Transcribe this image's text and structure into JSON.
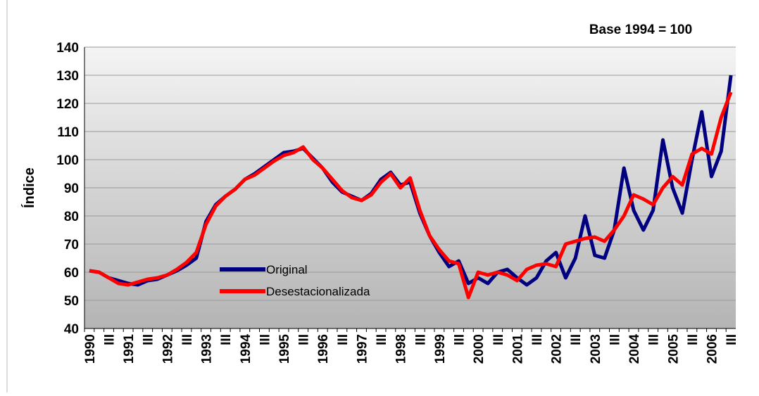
{
  "chart_data": {
    "type": "line",
    "annotation": "Base 1994 = 100",
    "y_label": "Índice",
    "categories": [
      "1990",
      null,
      "III",
      null,
      "1991",
      null,
      "III",
      null,
      "1992",
      null,
      "III",
      null,
      "1993",
      null,
      "III",
      null,
      "1994",
      null,
      "III",
      null,
      "1995",
      null,
      "III",
      null,
      "1996",
      null,
      "III",
      null,
      "1997",
      null,
      "III",
      null,
      "1998",
      null,
      "III",
      null,
      "1999",
      null,
      "III",
      null,
      "2000",
      null,
      "III",
      null,
      "2001",
      null,
      "III",
      null,
      "2002",
      null,
      "III",
      null,
      "2003",
      null,
      "III",
      null,
      "2004",
      null,
      "III",
      null,
      "2005",
      null,
      "III",
      null,
      "2006",
      null,
      "III"
    ],
    "series": [
      {
        "name": "Original",
        "color": "#000080",
        "values": [
          60.5,
          60,
          58,
          57,
          56,
          55.5,
          57,
          57.5,
          59,
          60.5,
          62.5,
          65,
          78,
          84,
          87,
          89.5,
          93,
          95,
          97.5,
          100,
          102.5,
          103,
          104,
          100.5,
          97,
          92,
          88.5,
          87,
          85.5,
          88,
          93,
          95.5,
          91,
          92,
          81,
          73,
          67,
          62,
          64,
          56,
          58,
          56,
          60,
          61,
          58,
          55.5,
          58,
          64,
          67,
          58,
          65,
          80,
          66,
          65,
          75,
          97,
          82,
          75,
          82,
          107,
          90,
          81,
          100,
          117,
          94,
          103,
          130
        ]
      },
      {
        "name": "Desestacionalizada",
        "color": "#ff0000",
        "values": [
          60.5,
          60,
          58,
          56,
          55.5,
          56.5,
          57.5,
          58,
          59,
          61,
          63.5,
          67,
          77,
          83.5,
          87,
          89.5,
          93,
          94.5,
          97,
          99.5,
          101.5,
          102.5,
          104.5,
          100,
          97,
          93,
          89,
          86.5,
          85.5,
          87.5,
          92,
          95,
          90,
          93.5,
          82,
          73,
          68,
          64,
          63,
          51,
          60,
          59,
          60,
          59,
          57,
          61,
          62.5,
          63,
          62,
          70,
          71,
          72,
          72.5,
          71,
          75,
          80,
          87.5,
          86,
          84,
          90,
          94,
          91,
          102,
          104,
          102,
          115,
          124
        ]
      }
    ],
    "ylim": [
      40,
      140
    ],
    "yticks": [
      40,
      50,
      60,
      70,
      80,
      90,
      100,
      110,
      120,
      130,
      140
    ],
    "grid": true
  }
}
